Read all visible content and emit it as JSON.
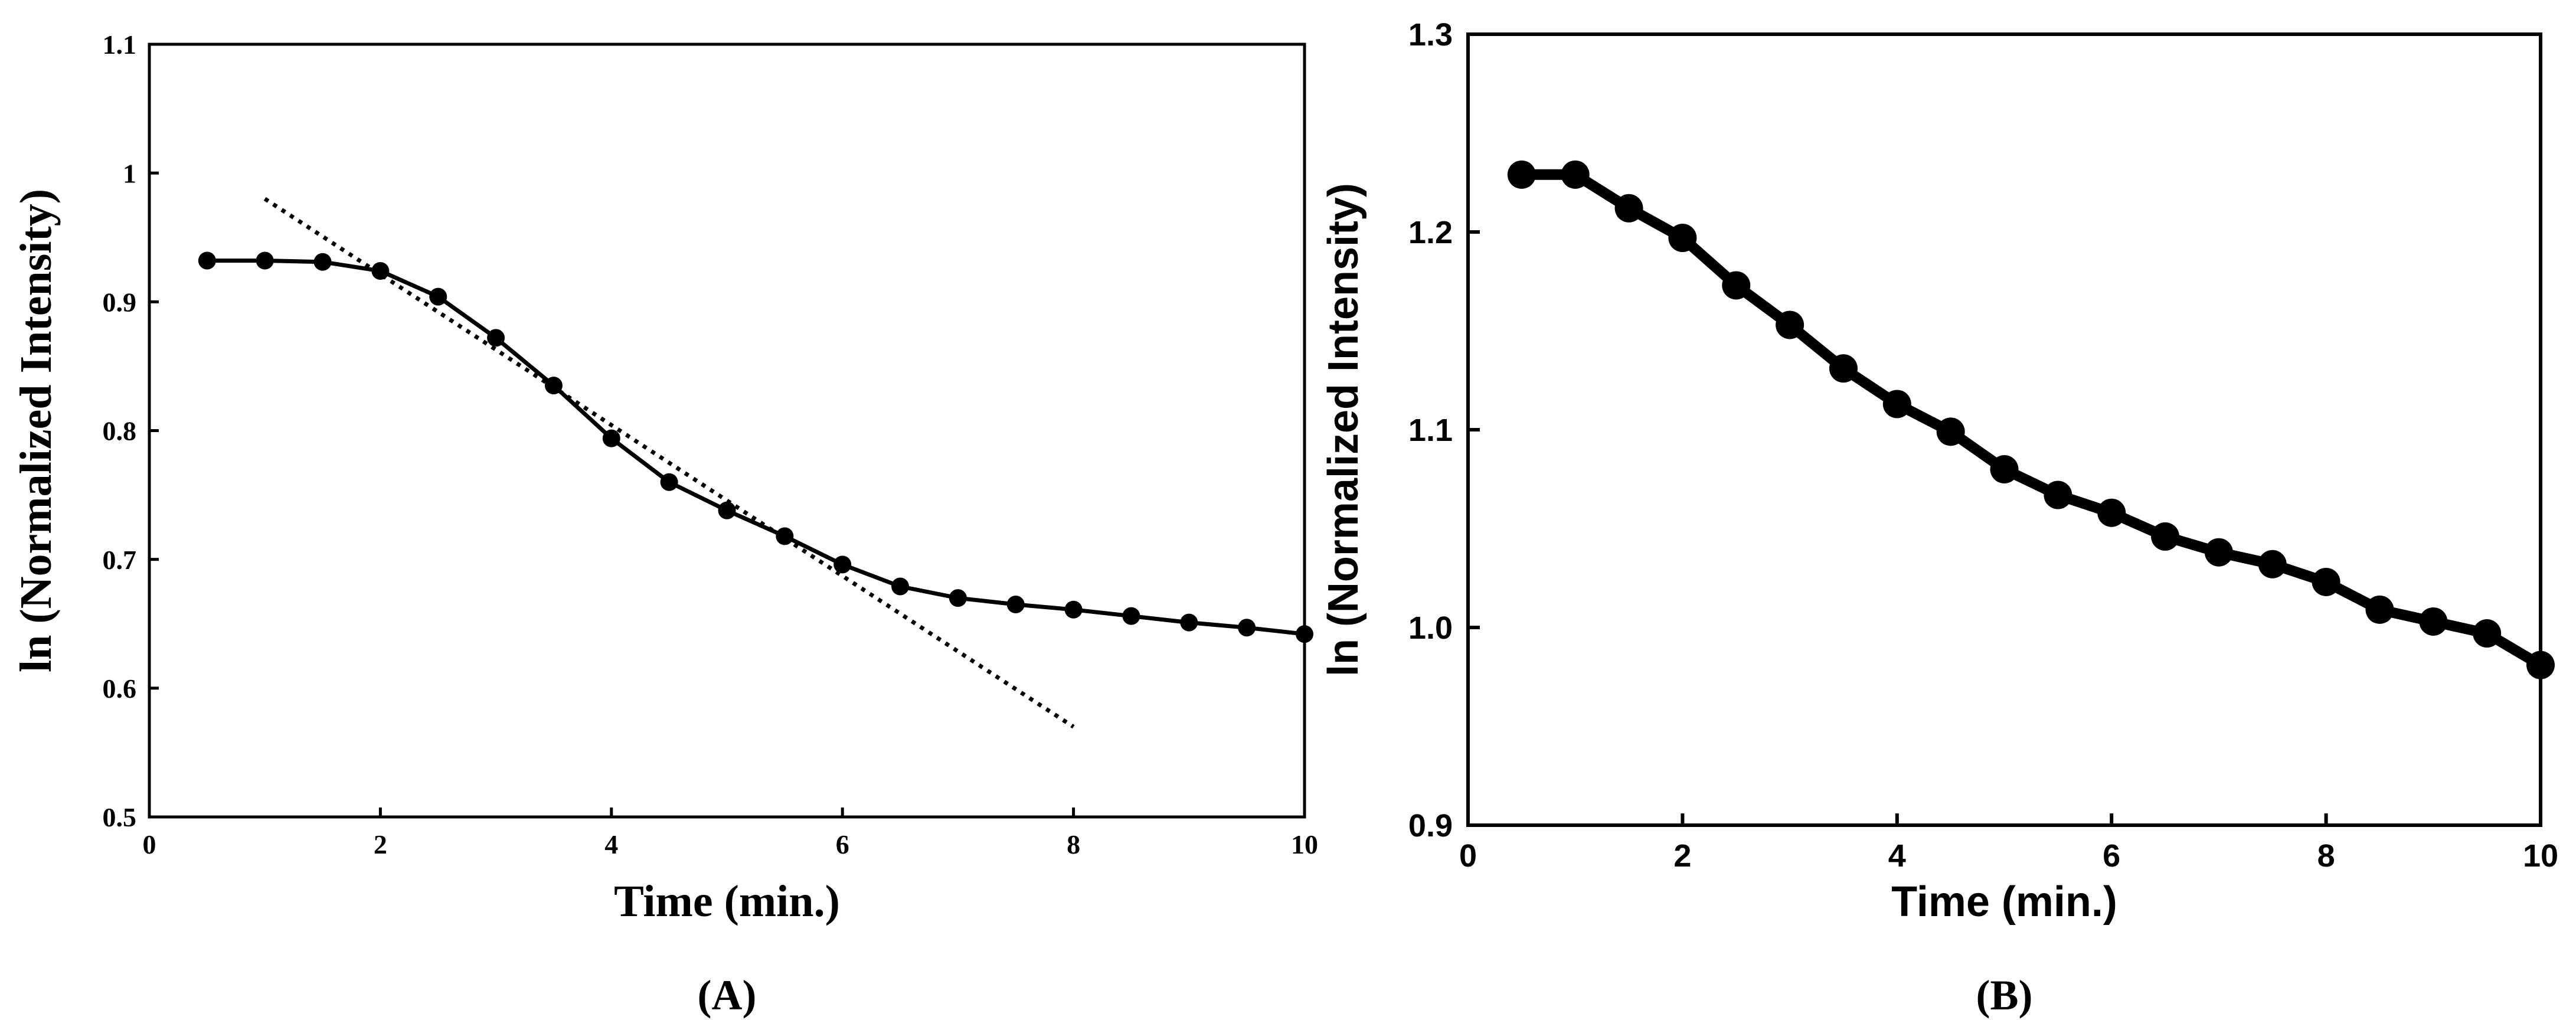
{
  "panels": [
    {
      "panel_label": "(A)",
      "chart_data": {
        "type": "line",
        "title": "",
        "xlabel": "Time (min.)",
        "ylabel": "ln (Normalized Intensity)",
        "xlim": [
          0,
          10
        ],
        "ylim": [
          0.5,
          1.1
        ],
        "xticks": [
          0,
          2,
          4,
          6,
          8,
          10
        ],
        "xtick_labels": [
          "0",
          "2",
          "4",
          "6",
          "8",
          "10"
        ],
        "yticks": [
          0.5,
          0.6,
          0.7,
          0.8,
          0.9,
          1.0,
          1.1
        ],
        "ytick_labels": [
          "0.5",
          "0.6",
          "0.7",
          "0.8",
          "0.9",
          "1",
          "1.1"
        ],
        "grid": false,
        "series": [
          {
            "name": "ln (Normalized Intensity)",
            "style": "solid-markers",
            "x": [
              0.5,
              1.0,
              1.5,
              2.0,
              2.5,
              3.0,
              3.5,
              4.0,
              4.5,
              5.0,
              5.5,
              6.0,
              6.5,
              7.0,
              7.5,
              8.0,
              8.5,
              9.0,
              9.5,
              10.0
            ],
            "y": [
              0.932,
              0.932,
              0.931,
              0.924,
              0.904,
              0.872,
              0.835,
              0.794,
              0.76,
              0.738,
              0.718,
              0.696,
              0.679,
              0.67,
              0.665,
              0.661,
              0.656,
              0.651,
              0.647,
              0.642
            ]
          },
          {
            "name": "linear fit",
            "style": "dotted",
            "x": [
              1.0,
              8.0
            ],
            "y": [
              0.98,
              0.57
            ]
          }
        ]
      }
    },
    {
      "panel_label": "(B)",
      "chart_data": {
        "type": "line",
        "title": "",
        "xlabel": "Time (min.)",
        "ylabel": "ln (Normalized Intensity)",
        "xlim": [
          0,
          10
        ],
        "ylim": [
          0.9,
          1.3
        ],
        "xticks": [
          0,
          2,
          4,
          6,
          8,
          10
        ],
        "xtick_labels": [
          "0",
          "2",
          "4",
          "6",
          "8",
          "10"
        ],
        "yticks": [
          0.9,
          1.0,
          1.1,
          1.2,
          1.3
        ],
        "ytick_labels": [
          "0.9",
          "1.0",
          "1.1",
          "1.2",
          "1.3"
        ],
        "grid": false,
        "series": [
          {
            "name": "ln (Normalized Intensity)",
            "style": "solid-markers-bold",
            "x": [
              0.5,
              1.0,
              1.5,
              2.0,
              2.5,
              3.0,
              3.5,
              4.0,
              4.5,
              5.0,
              5.5,
              6.0,
              6.5,
              7.0,
              7.5,
              8.0,
              8.5,
              9.0,
              9.5,
              10.0
            ],
            "y": [
              1.229,
              1.229,
              1.212,
              1.197,
              1.173,
              1.153,
              1.131,
              1.113,
              1.099,
              1.08,
              1.067,
              1.058,
              1.046,
              1.038,
              1.032,
              1.023,
              1.009,
              1.003,
              0.997,
              0.981
            ]
          }
        ]
      }
    }
  ],
  "colors": {
    "line": "#000000",
    "background": "#ffffff"
  }
}
